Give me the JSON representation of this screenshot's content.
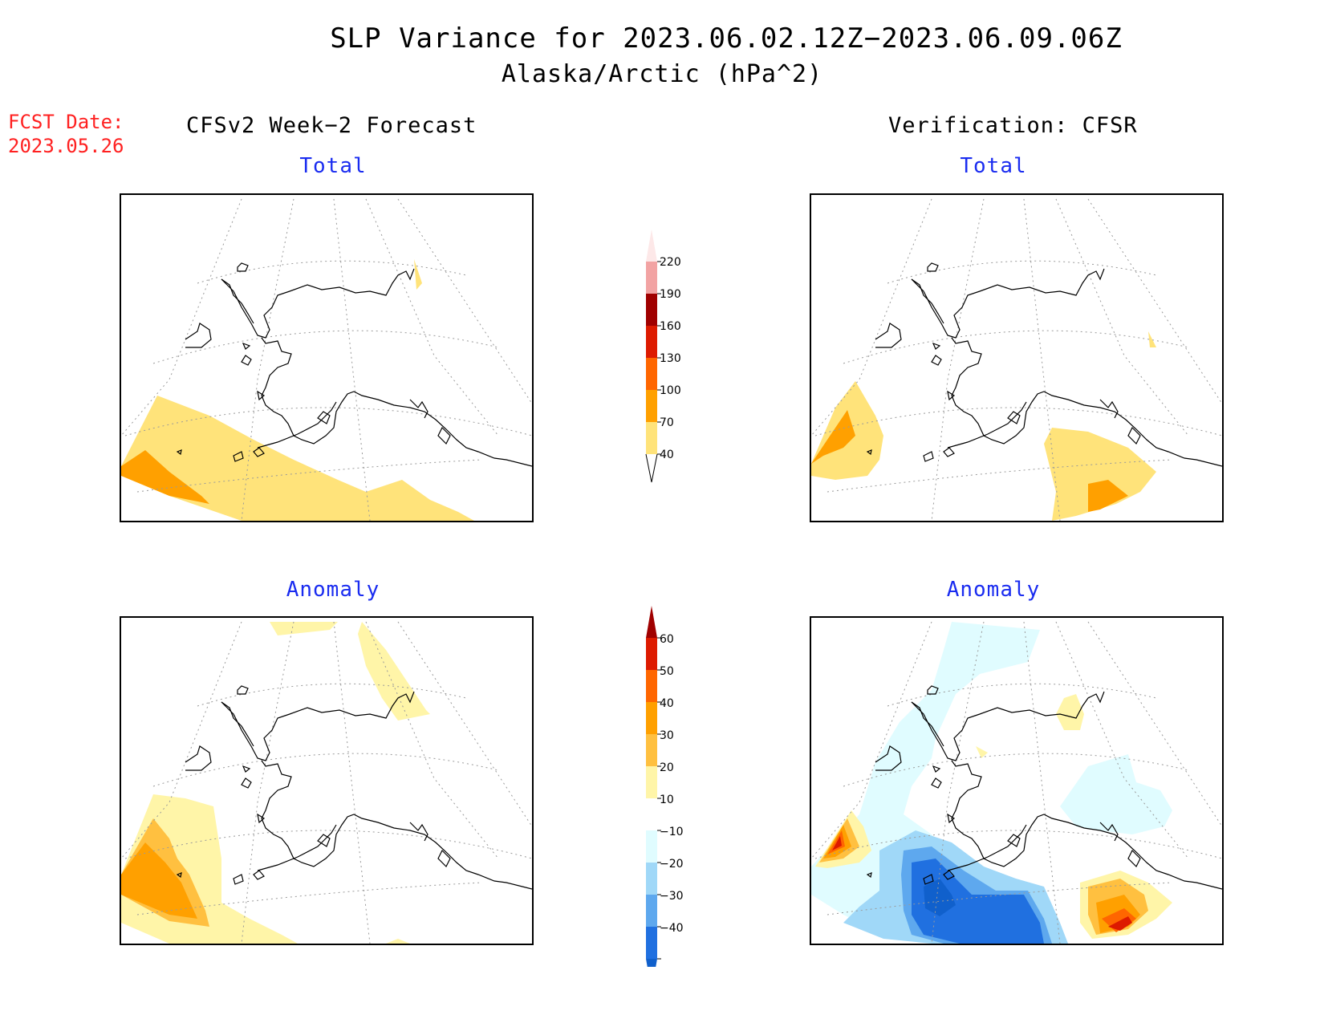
{
  "title": "SLP Variance for 2023.06.02.12Z−2023.06.09.06Z",
  "subtitle": "Alaska/Arctic (hPa^2)",
  "fcst_date": {
    "label": "FCST Date:",
    "value": "2023.05.26"
  },
  "columns": {
    "left": "CFSv2 Week−2 Forecast",
    "right": "Verification: CFSR"
  },
  "panels": {
    "top_left": "Total",
    "top_right": "Total",
    "bottom_left": "Anomaly",
    "bottom_right": "Anomaly"
  },
  "colorbar_total": {
    "labels": [
      "220",
      "190",
      "160",
      "130",
      "100",
      "70",
      "40"
    ],
    "colors": [
      "#fde8e8",
      "#f2a3a3",
      "#a00000",
      "#dd1a00",
      "#ff6600",
      "#ffa000",
      "#ffe37a"
    ]
  },
  "colorbar_anomaly": {
    "labels": [
      "60",
      "50",
      "40",
      "30",
      "20",
      "10",
      "−10",
      "−20",
      "−30",
      "−40"
    ],
    "colors": [
      "#a00000",
      "#dd1a00",
      "#ff6600",
      "#ffa000",
      "#ffc040",
      "#fff5a8",
      "#ffffff",
      "#e0fcff",
      "#a0d8f8",
      "#5ea8ee",
      "#2070e0",
      "#1060cc"
    ]
  },
  "colors": {
    "fill_40_70": "#ffe37a",
    "fill_70_100": "#ffa000",
    "fcst_date": "#ff2020",
    "panel_title": "#1a2cf0"
  }
}
